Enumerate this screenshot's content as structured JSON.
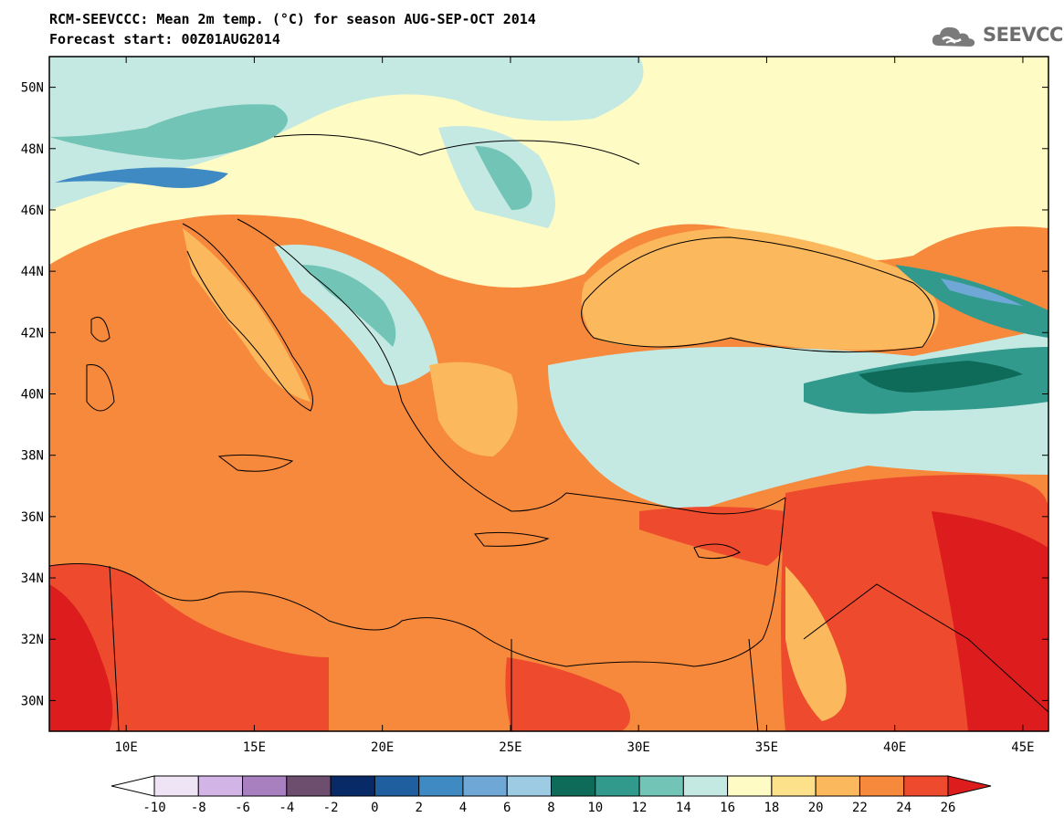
{
  "title": {
    "line1": "RCM-SEEVCCC: Mean 2m temp. (°C) for season AUG-SEP-OCT 2014",
    "line2": "Forecast start: 00Z01AUG2014"
  },
  "logo": {
    "text": "SEEVCCC",
    "icon": "cloud-icon",
    "color": "#6d6d6d"
  },
  "map": {
    "lon_range": [
      7,
      46
    ],
    "lat_range": [
      29,
      51
    ],
    "lat_ticks": [
      {
        "value": 50,
        "label": "50N"
      },
      {
        "value": 48,
        "label": "48N"
      },
      {
        "value": 46,
        "label": "46N"
      },
      {
        "value": 44,
        "label": "44N"
      },
      {
        "value": 42,
        "label": "42N"
      },
      {
        "value": 40,
        "label": "40N"
      },
      {
        "value": 38,
        "label": "38N"
      },
      {
        "value": 36,
        "label": "36N"
      },
      {
        "value": 34,
        "label": "34N"
      },
      {
        "value": 32,
        "label": "32N"
      },
      {
        "value": 30,
        "label": "30N"
      }
    ],
    "lon_ticks": [
      {
        "value": 10,
        "label": "10E"
      },
      {
        "value": 15,
        "label": "15E"
      },
      {
        "value": 20,
        "label": "20E"
      },
      {
        "value": 25,
        "label": "25E"
      },
      {
        "value": 30,
        "label": "30E"
      },
      {
        "value": 35,
        "label": "35E"
      },
      {
        "value": 40,
        "label": "40E"
      },
      {
        "value": 45,
        "label": "45E"
      }
    ]
  },
  "legend": {
    "levels": [
      "-10",
      "-8",
      "-6",
      "-4",
      "-2",
      "0",
      "2",
      "4",
      "6",
      "8",
      "10",
      "12",
      "14",
      "16",
      "18",
      "20",
      "22",
      "24",
      "26"
    ],
    "colors": [
      "#ffffff",
      "#efe3f6",
      "#d3b4e6",
      "#a880c0",
      "#6e4e6e",
      "#082a66",
      "#1f5fa0",
      "#3f8ac2",
      "#6fa8d6",
      "#9ecbe4",
      "#0e6b5a",
      "#319a8c",
      "#71c4b6",
      "#c4e9e2",
      "#fefbc4",
      "#fde08a",
      "#fbb85c",
      "#f6893c",
      "#ee4a2e",
      "#dd1d1d"
    ]
  }
}
